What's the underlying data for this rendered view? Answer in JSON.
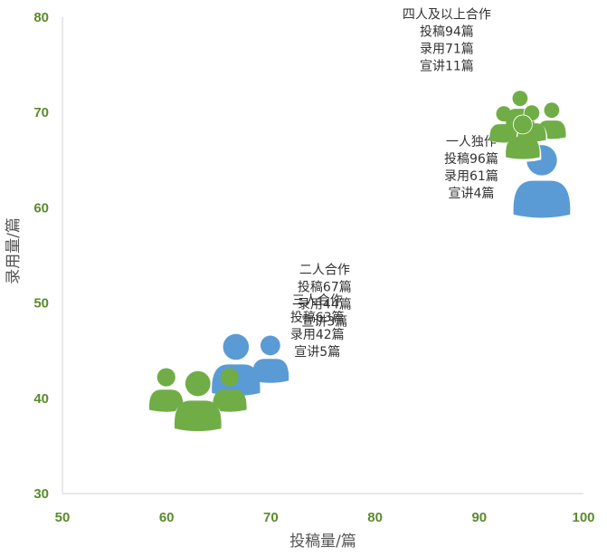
{
  "chart_data": {
    "type": "scatter",
    "xlabel": "投稿量/篇",
    "ylabel": "录用量/篇",
    "xlim": [
      50,
      100
    ],
    "ylim": [
      30,
      80
    ],
    "xticks": [
      50,
      60,
      70,
      80,
      90,
      100
    ],
    "yticks": [
      30,
      40,
      50,
      60,
      70,
      80
    ],
    "grid": false,
    "points": [
      {
        "label": "一人独作",
        "x": 96,
        "y": 61,
        "lecture": 4,
        "icon": "single-person-icon",
        "color": "#5b9bd5",
        "text": [
          "一人独作",
          "投稿96篇",
          "录用61篇",
          "宣讲4篇"
        ]
      },
      {
        "label": "二人合作",
        "x": 67,
        "y": 44,
        "lecture": 3,
        "icon": "two-people-icon",
        "color": "#5b9bd5",
        "text": [
          "二人合作",
          "投稿67篇",
          "录用44篇",
          "宣讲3篇"
        ]
      },
      {
        "label": "三人合作",
        "x": 63,
        "y": 42,
        "lecture": 5,
        "icon": "three-people-icon",
        "color": "#70ad47",
        "text": [
          "三人合作",
          "投稿63篇",
          "录用42篇",
          "宣讲5篇"
        ]
      },
      {
        "label": "四人及以上合作",
        "x": 94,
        "y": 71,
        "lecture": 11,
        "icon": "group-people-icon",
        "color": "#70ad47",
        "text": [
          "四人及以上合作",
          "投稿94篇",
          "录用71篇",
          "宣讲11篇"
        ]
      }
    ]
  }
}
